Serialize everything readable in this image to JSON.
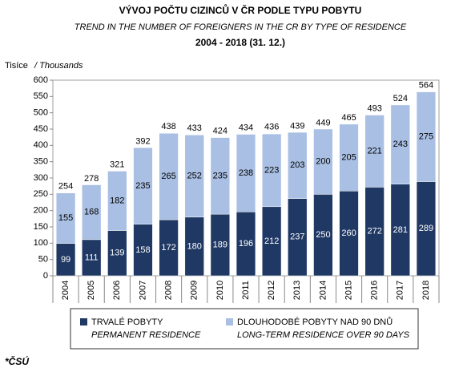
{
  "chart_data": {
    "type": "stacked-bar",
    "title": "VÝVOJ POČTU CIZINCŮ V ČR PODLE TYPU POBYTU",
    "subtitle": "TREND IN THE NUMBER OF FOREIGNERS IN THE CR BY TYPE OF RESIDENCE",
    "period": "2004 - 2018 (31. 12.)",
    "y_label": "Tisíce",
    "y_label_en": "/ Thousands",
    "categories": [
      "2004",
      "2005",
      "2006",
      "2007",
      "2008",
      "2009",
      "2010",
      "2011",
      "2012",
      "2013",
      "2014",
      "2015",
      "2016",
      "2017",
      "2018"
    ],
    "series": [
      {
        "name": "TRVALÉ POBYTY",
        "name_en": "PERMANENT RESIDENCE",
        "color": "#1f3864",
        "values": [
          99,
          111,
          139,
          158,
          172,
          180,
          189,
          196,
          212,
          237,
          250,
          260,
          272,
          281,
          289
        ]
      },
      {
        "name": "DLOUHODOBÉ POBYTY NAD 90 DNŮ",
        "name_en": "LONG-TERM RESIDENCE OVER 90 DAYS",
        "color": "#a9bfe3",
        "values": [
          155,
          168,
          182,
          235,
          265,
          252,
          235,
          238,
          223,
          203,
          200,
          205,
          221,
          243,
          275
        ]
      }
    ],
    "totals": [
      254,
      278,
      321,
      392,
      438,
      433,
      424,
      434,
      436,
      439,
      449,
      465,
      493,
      524,
      564
    ],
    "ylim": [
      0,
      600
    ],
    "yticks": [
      0,
      50,
      100,
      150,
      200,
      250,
      300,
      350,
      400,
      450,
      500,
      550,
      600
    ],
    "source": "*ČSÚ"
  }
}
